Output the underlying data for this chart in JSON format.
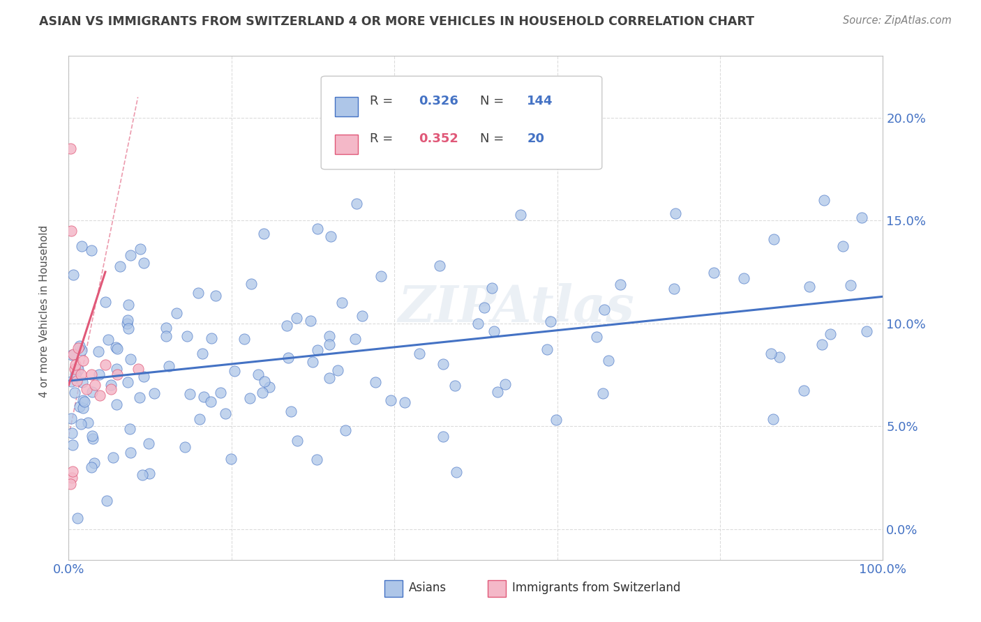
{
  "title": "ASIAN VS IMMIGRANTS FROM SWITZERLAND 4 OR MORE VEHICLES IN HOUSEHOLD CORRELATION CHART",
  "source": "Source: ZipAtlas.com",
  "ylabel": "4 or more Vehicles in Household",
  "ytick_vals": [
    0.0,
    5.0,
    10.0,
    15.0,
    20.0
  ],
  "ytick_labels": [
    "0.0%",
    "5.0%",
    "10.0%",
    "15.0%",
    "20.0%"
  ],
  "xrange": [
    0.0,
    100.0
  ],
  "yrange": [
    -1.5,
    23.0
  ],
  "watermark": "ZIPAtlas",
  "legend_asians_r": "0.326",
  "legend_asians_n": "144",
  "legend_swiss_r": "0.352",
  "legend_swiss_n": "20",
  "asian_face_color": "#aec6e8",
  "asian_edge_color": "#4472c4",
  "swiss_face_color": "#f4b8c8",
  "swiss_line_color": "#e05878",
  "title_color": "#404040",
  "source_color": "#808080",
  "tick_color": "#4472c4",
  "r_color_asian": "#4472c4",
  "n_color_asian": "#4472c4",
  "r_color_swiss": "#e05878",
  "n_color_swiss": "#4472c4",
  "asian_trend_start_y": 7.2,
  "asian_trend_end_y": 11.3,
  "swiss_solid_x0": 0.0,
  "swiss_solid_y0": 7.0,
  "swiss_solid_x1": 4.5,
  "swiss_solid_y1": 12.5,
  "swiss_dash_x0": 0.0,
  "swiss_dash_y0": 4.5,
  "swiss_dash_x1": 8.5,
  "swiss_dash_y1": 21.0,
  "grid_color": "#d8d8d8",
  "grid_xticks": [
    0,
    20,
    40,
    60,
    80,
    100
  ],
  "spine_color": "#c0c0c0"
}
